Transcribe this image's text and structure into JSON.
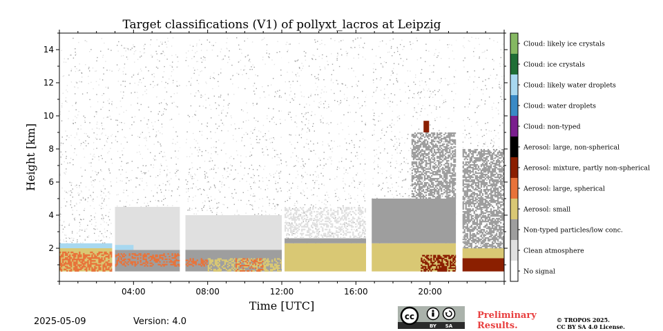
{
  "chart_data": {
    "type": "heatmap",
    "title": "Target classifications (V1) of pollyxt_lacros at Leipzig",
    "xlabel": "Time [UTC]",
    "ylabel": "Height [km]",
    "xlim_hours": [
      0,
      24
    ],
    "ylim_km": [
      0,
      15
    ],
    "x_ticks_hours": [
      4,
      8,
      12,
      16,
      20
    ],
    "x_tick_labels": [
      "04:00",
      "08:00",
      "12:00",
      "16:00",
      "20:00"
    ],
    "y_ticks_km": [
      2,
      4,
      6,
      8,
      10,
      12,
      14
    ],
    "y_tick_labels": [
      "2",
      "4",
      "6",
      "8",
      "10",
      "12",
      "14"
    ],
    "overlap_base_km": 0.6,
    "classes": [
      {
        "label": "No signal",
        "color": "#ffffff"
      },
      {
        "label": "Clean atmosphere",
        "color": "#e0e0e0"
      },
      {
        "label": "Non-typed particles/low conc.",
        "color": "#9e9e9e"
      },
      {
        "label": "Aerosol: small",
        "color": "#d9c874"
      },
      {
        "label": "Aerosol: large, spherical",
        "color": "#e8733a"
      },
      {
        "label": "Aerosol: mixture, partly non-spherical",
        "color": "#8b1f00"
      },
      {
        "label": "Aerosol: large, non-spherical",
        "color": "#000000"
      },
      {
        "label": "Cloud: non-typed",
        "color": "#7a1e8e"
      },
      {
        "label": "Cloud: water droplets",
        "color": "#3a8ac6"
      },
      {
        "label": "Cloud: likely water droplets",
        "color": "#a8d8f0"
      },
      {
        "label": "Cloud: ice crystals",
        "color": "#1f6e36"
      },
      {
        "label": "Cloud: likely ice crystals",
        "color": "#85b862"
      }
    ],
    "data_gaps_hours": [
      [
        2.85,
        3.0
      ],
      [
        6.5,
        6.8
      ],
      [
        12.0,
        12.15
      ],
      [
        16.55,
        16.85
      ],
      [
        21.4,
        21.75
      ]
    ],
    "layers": [
      {
        "start": 0.0,
        "end": 2.85,
        "cls": "Aerosol: small",
        "base": 0.6,
        "top": 2.0
      },
      {
        "start": 0.0,
        "end": 2.85,
        "cls": "Aerosol: large, spherical",
        "base": 0.6,
        "top": 1.8,
        "density": 0.55
      },
      {
        "start": 0.0,
        "end": 2.85,
        "cls": "Cloud: likely water droplets",
        "base": 2.0,
        "top": 2.3
      },
      {
        "start": 3.0,
        "end": 6.5,
        "cls": "Non-typed particles/low conc.",
        "base": 0.6,
        "top": 1.9
      },
      {
        "start": 3.0,
        "end": 6.5,
        "cls": "Aerosol: large, spherical",
        "base": 0.9,
        "top": 1.7,
        "density": 0.4
      },
      {
        "start": 3.0,
        "end": 6.5,
        "cls": "Clean atmosphere",
        "base": 1.9,
        "top": 4.5
      },
      {
        "start": 3.0,
        "end": 4.0,
        "cls": "Cloud: likely water droplets",
        "base": 1.9,
        "top": 2.2
      },
      {
        "start": 6.8,
        "end": 12.0,
        "cls": "Non-typed particles/low conc.",
        "base": 0.6,
        "top": 2.0
      },
      {
        "start": 6.8,
        "end": 8.0,
        "cls": "Aerosol: large, spherical",
        "base": 0.9,
        "top": 1.4,
        "density": 0.5
      },
      {
        "start": 8.0,
        "end": 12.0,
        "cls": "Aerosol: small",
        "base": 0.6,
        "top": 1.4,
        "density": 0.5
      },
      {
        "start": 9.5,
        "end": 11.0,
        "cls": "Aerosol: large, spherical",
        "base": 0.6,
        "top": 1.4,
        "density": 0.35
      },
      {
        "start": 6.8,
        "end": 12.0,
        "cls": "Clean atmosphere",
        "base": 1.9,
        "top": 4.0
      },
      {
        "start": 12.15,
        "end": 16.55,
        "cls": "Aerosol: small",
        "base": 0.6,
        "top": 2.3
      },
      {
        "start": 12.15,
        "end": 16.55,
        "cls": "Non-typed particles/low conc.",
        "base": 2.3,
        "top": 2.6
      },
      {
        "start": 12.15,
        "end": 16.55,
        "cls": "Clean atmosphere",
        "base": 2.6,
        "top": 4.5,
        "density": 0.35
      },
      {
        "start": 16.85,
        "end": 21.4,
        "cls": "Aerosol: small",
        "base": 0.6,
        "top": 2.3
      },
      {
        "start": 19.5,
        "end": 21.4,
        "cls": "Aerosol: mixture, partly non-spherical",
        "base": 0.6,
        "top": 1.6,
        "density": 0.55
      },
      {
        "start": 16.85,
        "end": 21.4,
        "cls": "Non-typed particles/low conc.",
        "base": 2.3,
        "top": 5.0
      },
      {
        "start": 19.0,
        "end": 21.4,
        "cls": "Non-typed particles/low conc.",
        "base": 5.0,
        "top": 9.0,
        "density": 0.55
      },
      {
        "start": 21.75,
        "end": 24.0,
        "cls": "Aerosol: mixture, partly non-spherical",
        "base": 0.6,
        "top": 1.4
      },
      {
        "start": 21.75,
        "end": 24.0,
        "cls": "Aerosol: small",
        "base": 1.4,
        "top": 2.0
      },
      {
        "start": 21.75,
        "end": 24.0,
        "cls": "Non-typed particles/low conc.",
        "base": 2.0,
        "top": 8.0,
        "density": 0.6
      },
      {
        "start": 19.65,
        "end": 19.95,
        "cls": "Aerosol: mixture, partly non-spherical",
        "base": 9.0,
        "top": 9.7
      }
    ]
  },
  "footer": {
    "date": "2025-05-09",
    "version": "Version: 4.0",
    "preliminary": "Preliminary Results.",
    "copyright_line1": "© TROPOS 2025.",
    "copyright_line2": "CC BY SA 4.0 License.",
    "license_badge": {
      "cc": "cc",
      "by": "BY",
      "sa": "SA"
    }
  },
  "colors": {
    "preliminary": "#e83e3e",
    "badge_bg": "#aab2ab",
    "badge_bar": "#2b2b2b"
  }
}
